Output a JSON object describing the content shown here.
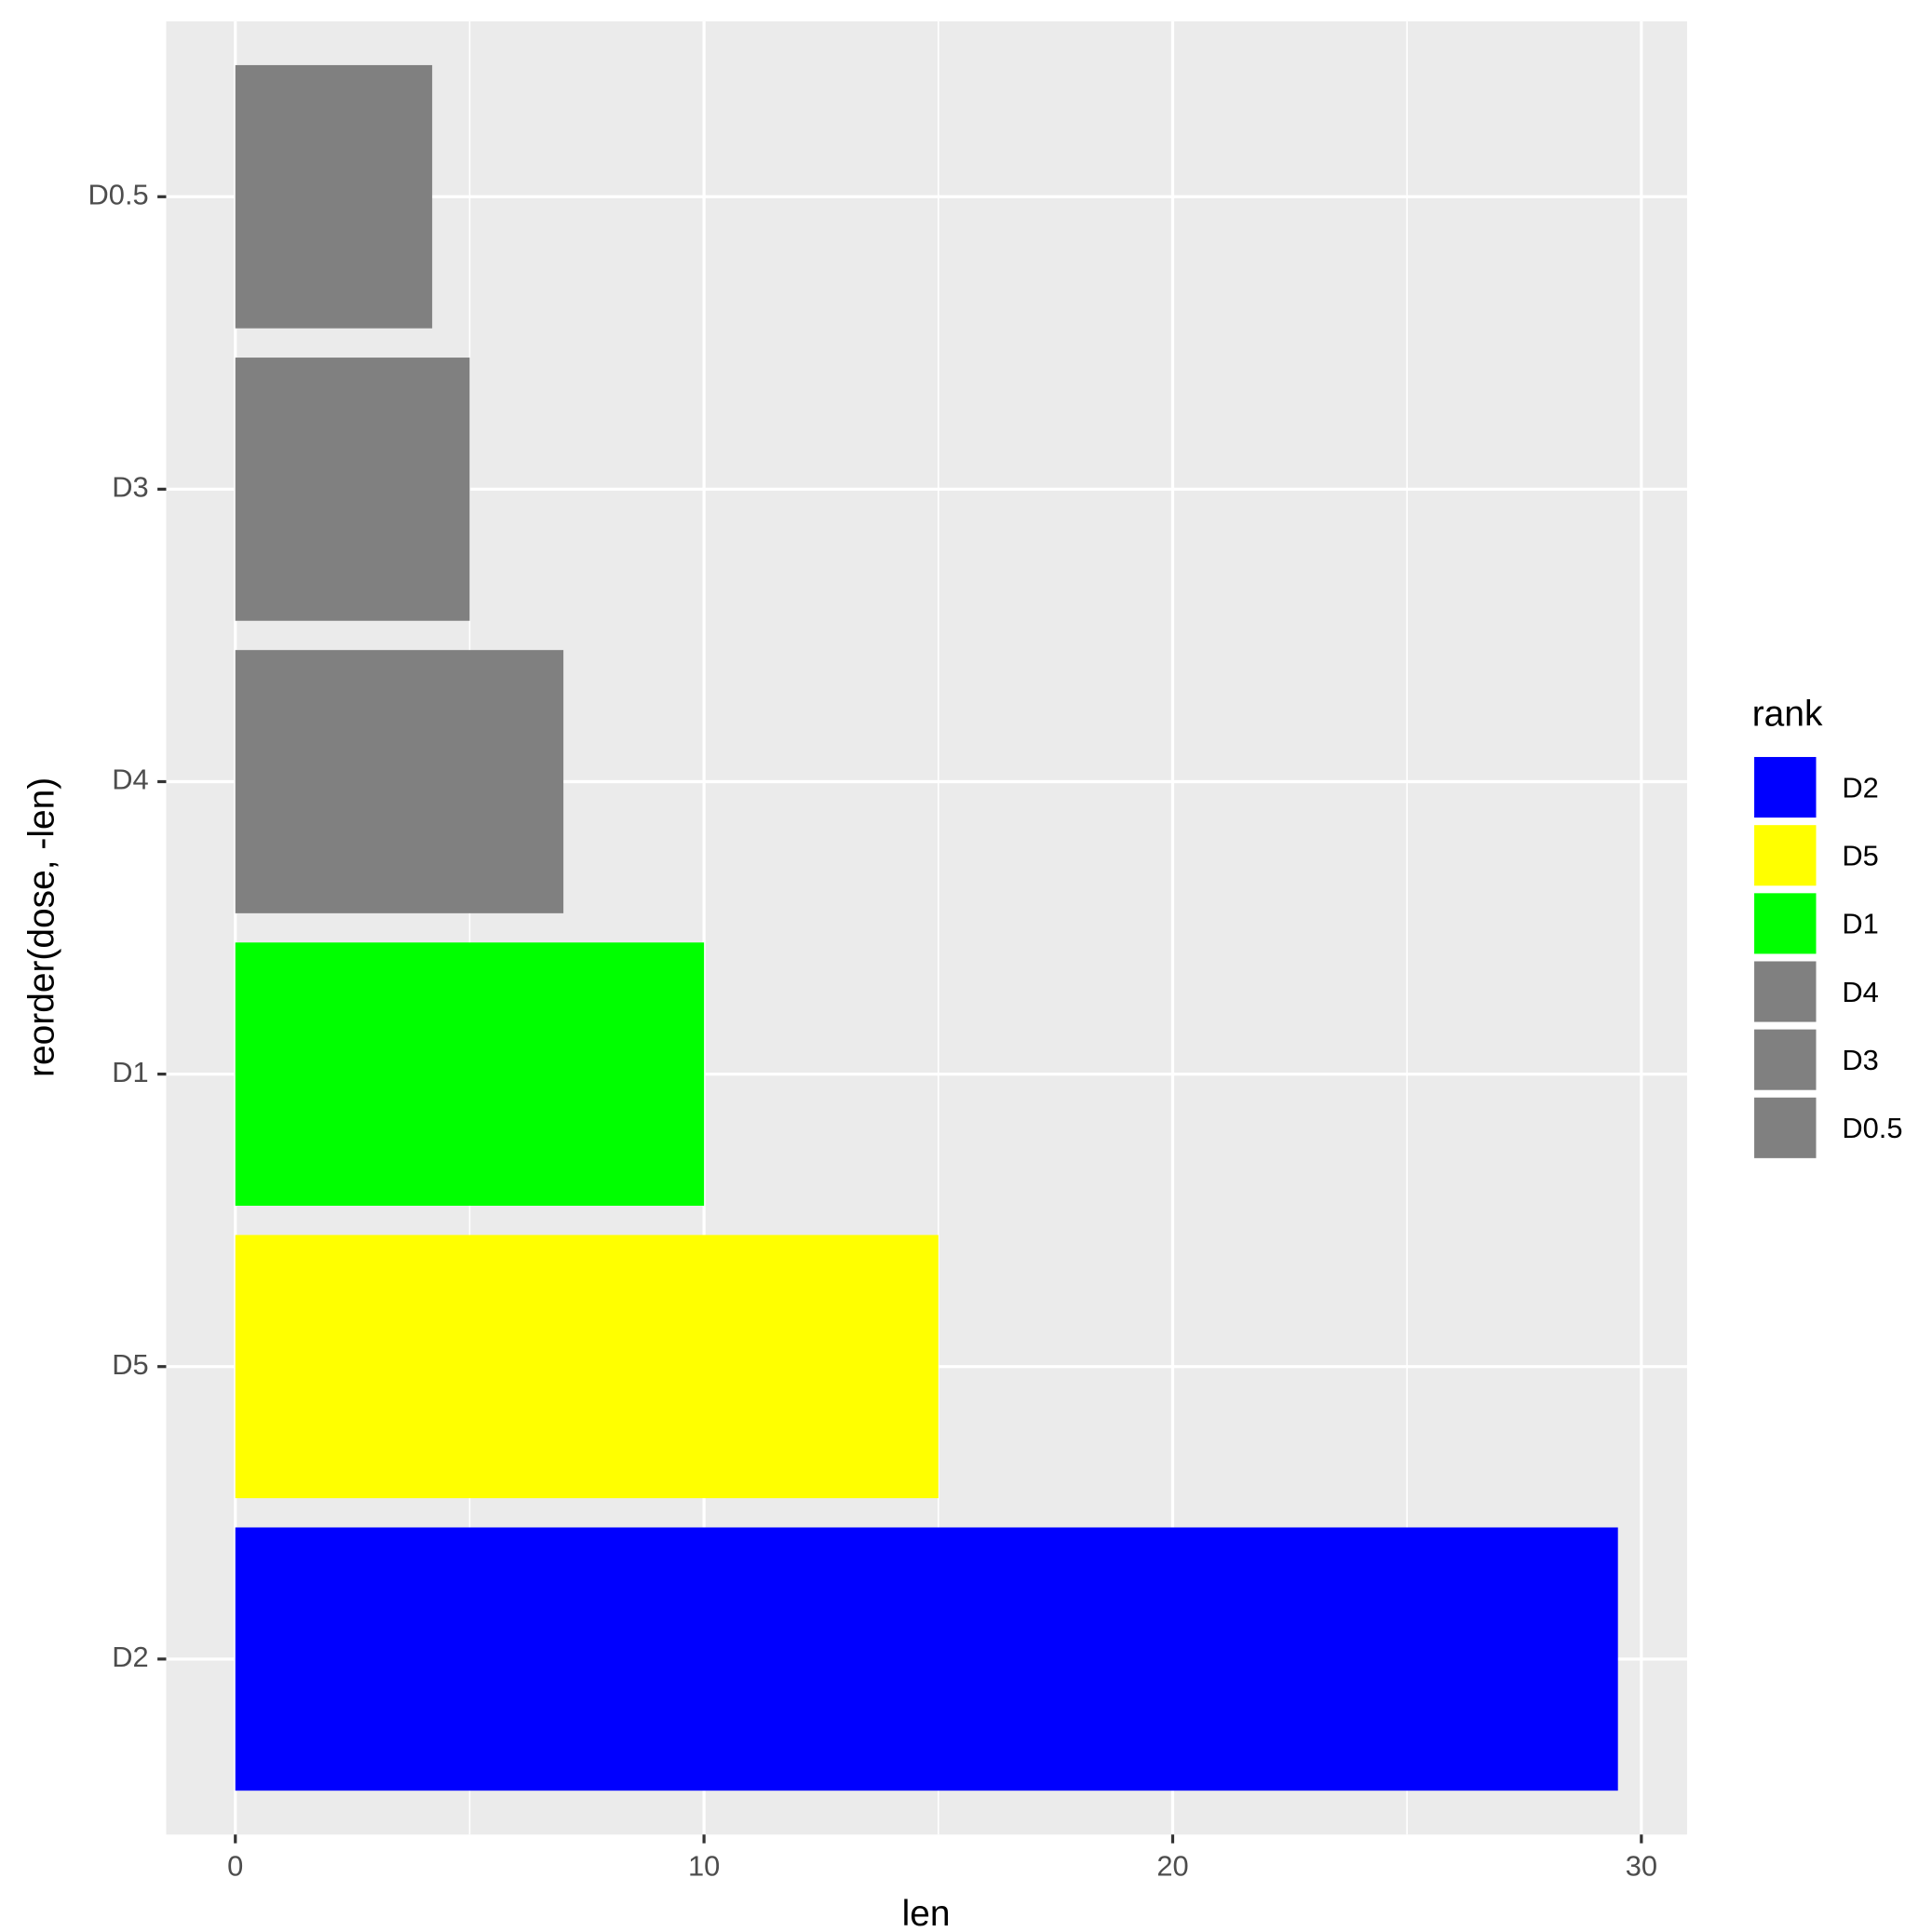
{
  "chart_data": {
    "type": "bar",
    "orientation": "horizontal",
    "x_label": "len",
    "y_label": "reorder(dose, -len)",
    "categories": [
      "D2",
      "D5",
      "D1",
      "D4",
      "D3",
      "D0.5"
    ],
    "values": [
      29.5,
      15,
      10,
      7,
      5,
      4.2
    ],
    "colors": [
      "#0000ff",
      "#ffff00",
      "#00ff00",
      "#808080",
      "#808080",
      "#808080"
    ],
    "xlim": [
      -1.475,
      30.975
    ],
    "xticks": [
      0,
      10,
      20,
      30
    ],
    "grid": true,
    "legend": {
      "title": "rank",
      "position": "right"
    }
  }
}
